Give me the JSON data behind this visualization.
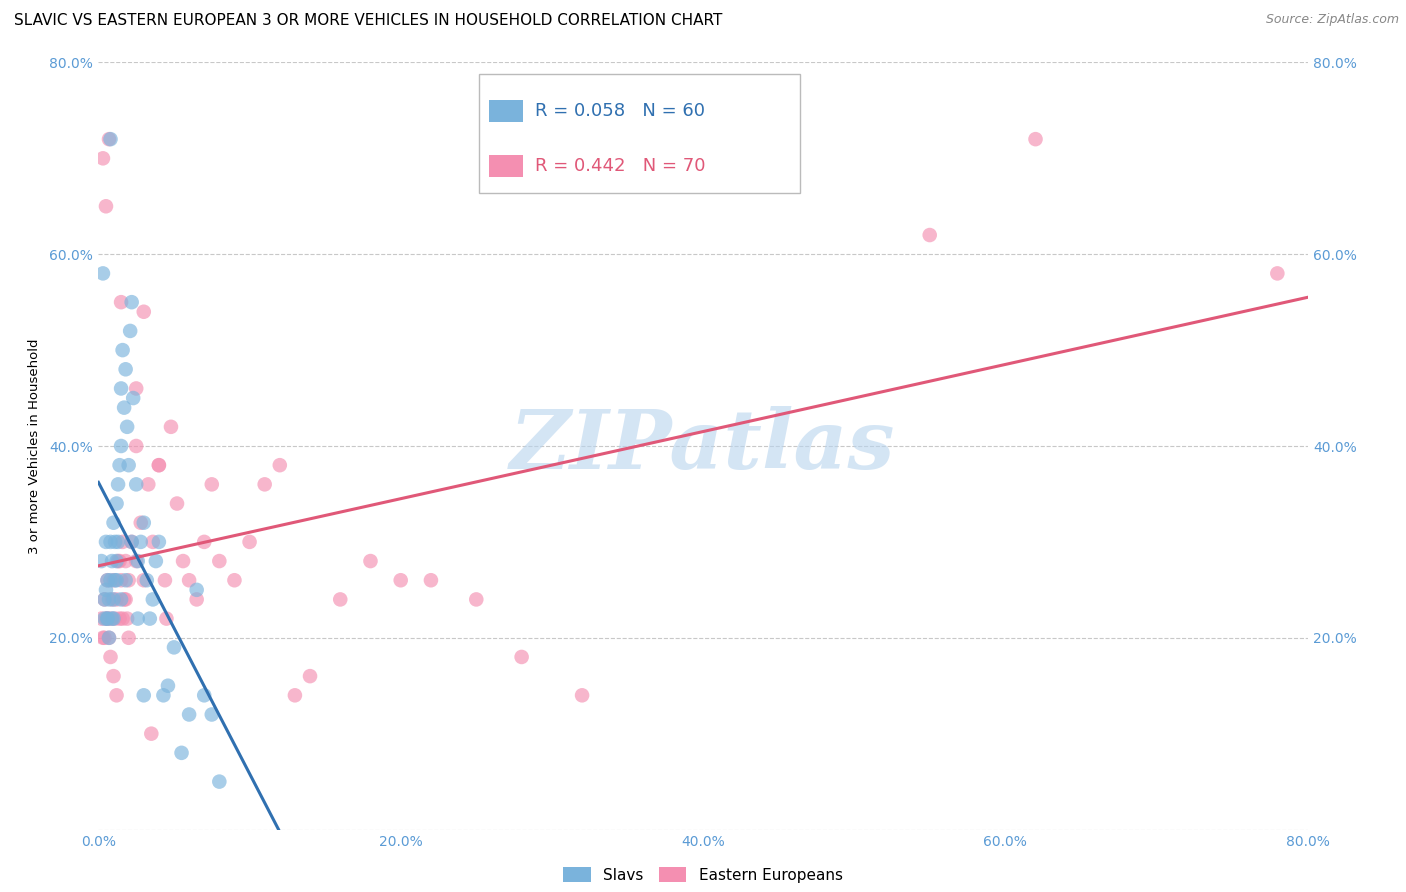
{
  "title": "SLAVIC VS EASTERN EUROPEAN 3 OR MORE VEHICLES IN HOUSEHOLD CORRELATION CHART",
  "source": "Source: ZipAtlas.com",
  "ylabel": "3 or more Vehicles in Household",
  "xlim": [
    0.0,
    0.8
  ],
  "ylim": [
    0.0,
    0.8
  ],
  "xticks": [
    0.0,
    0.2,
    0.4,
    0.6,
    0.8
  ],
  "yticks": [
    0.0,
    0.2,
    0.4,
    0.6,
    0.8
  ],
  "xtick_labels": [
    "0.0%",
    "20.0%",
    "40.0%",
    "60.0%",
    "80.0%"
  ],
  "left_ytick_labels": [
    "",
    "20.0%",
    "40.0%",
    "60.0%",
    "80.0%"
  ],
  "right_ytick_labels": [
    "20.0%",
    "40.0%",
    "60.0%",
    "80.0%"
  ],
  "right_yticks": [
    0.2,
    0.4,
    0.6,
    0.8
  ],
  "slavs_color": "#7ab3dc",
  "eastern_color": "#f48fb1",
  "slavs_line_color": "#3070b0",
  "eastern_line_color": "#e05878",
  "watermark": "ZIPatlas",
  "watermark_color": "#b8d4ee",
  "grid_color": "#c8c8c8",
  "background_color": "#ffffff",
  "tick_color": "#5b9bd5",
  "slavs_x": [
    0.002,
    0.004,
    0.004,
    0.005,
    0.005,
    0.006,
    0.006,
    0.007,
    0.007,
    0.008,
    0.008,
    0.009,
    0.009,
    0.01,
    0.01,
    0.011,
    0.011,
    0.012,
    0.012,
    0.013,
    0.013,
    0.014,
    0.015,
    0.015,
    0.016,
    0.017,
    0.018,
    0.019,
    0.02,
    0.021,
    0.022,
    0.023,
    0.025,
    0.026,
    0.028,
    0.03,
    0.032,
    0.034,
    0.036,
    0.038,
    0.04,
    0.043,
    0.046,
    0.05,
    0.055,
    0.06,
    0.065,
    0.07,
    0.075,
    0.08,
    0.003,
    0.006,
    0.008,
    0.01,
    0.012,
    0.015,
    0.018,
    0.022,
    0.026,
    0.03
  ],
  "slavs_y": [
    0.28,
    0.24,
    0.22,
    0.3,
    0.25,
    0.26,
    0.22,
    0.24,
    0.2,
    0.3,
    0.26,
    0.28,
    0.22,
    0.32,
    0.24,
    0.3,
    0.26,
    0.34,
    0.28,
    0.36,
    0.3,
    0.38,
    0.46,
    0.4,
    0.5,
    0.44,
    0.48,
    0.42,
    0.38,
    0.52,
    0.55,
    0.45,
    0.36,
    0.28,
    0.3,
    0.32,
    0.26,
    0.22,
    0.24,
    0.28,
    0.3,
    0.14,
    0.15,
    0.19,
    0.08,
    0.12,
    0.25,
    0.14,
    0.12,
    0.05,
    0.58,
    0.22,
    0.72,
    0.22,
    0.26,
    0.24,
    0.26,
    0.3,
    0.22,
    0.14
  ],
  "eastern_x": [
    0.002,
    0.003,
    0.004,
    0.005,
    0.006,
    0.007,
    0.008,
    0.009,
    0.01,
    0.011,
    0.012,
    0.013,
    0.014,
    0.015,
    0.016,
    0.017,
    0.018,
    0.019,
    0.02,
    0.022,
    0.025,
    0.028,
    0.03,
    0.033,
    0.036,
    0.04,
    0.044,
    0.048,
    0.052,
    0.056,
    0.06,
    0.065,
    0.07,
    0.075,
    0.08,
    0.09,
    0.1,
    0.11,
    0.12,
    0.13,
    0.14,
    0.16,
    0.18,
    0.2,
    0.22,
    0.25,
    0.28,
    0.32,
    0.55,
    0.62,
    0.004,
    0.006,
    0.008,
    0.01,
    0.012,
    0.014,
    0.016,
    0.018,
    0.02,
    0.025,
    0.03,
    0.035,
    0.04,
    0.045,
    0.003,
    0.005,
    0.007,
    0.015,
    0.025,
    0.78
  ],
  "eastern_y": [
    0.22,
    0.2,
    0.24,
    0.22,
    0.26,
    0.2,
    0.22,
    0.24,
    0.26,
    0.22,
    0.24,
    0.28,
    0.22,
    0.26,
    0.3,
    0.24,
    0.28,
    0.22,
    0.26,
    0.3,
    0.28,
    0.32,
    0.26,
    0.36,
    0.3,
    0.38,
    0.26,
    0.42,
    0.34,
    0.28,
    0.26,
    0.24,
    0.3,
    0.36,
    0.28,
    0.26,
    0.3,
    0.36,
    0.38,
    0.14,
    0.16,
    0.24,
    0.28,
    0.26,
    0.26,
    0.24,
    0.18,
    0.14,
    0.62,
    0.72,
    0.2,
    0.22,
    0.18,
    0.16,
    0.14,
    0.28,
    0.22,
    0.24,
    0.2,
    0.46,
    0.54,
    0.1,
    0.38,
    0.22,
    0.7,
    0.65,
    0.72,
    0.55,
    0.4,
    0.58
  ],
  "title_fontsize": 11,
  "axis_label_fontsize": 9.5,
  "tick_fontsize": 10,
  "legend_fontsize": 12
}
